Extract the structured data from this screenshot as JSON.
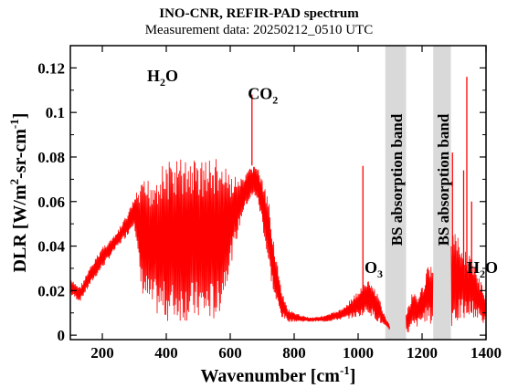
{
  "chart_data": {
    "type": "line",
    "title": "INO-CNR, REFIR-PAD spectrum",
    "subtitle": "Measurement data: 20250212_0510 UTC",
    "xlabel": {
      "main": "Wavenumber [cm",
      "sup": "-1",
      "close": "]"
    },
    "ylabel": {
      "main": "DLR [W/m",
      "sup1": "2",
      "mid": "-sr-cm",
      "sup2": "-1",
      "close": "]"
    },
    "xlim": [
      100,
      1400
    ],
    "ylim": [
      -0.002,
      0.13
    ],
    "xticks": [
      200,
      400,
      600,
      800,
      1000,
      1200,
      1400
    ],
    "xtick_labels": [
      "200",
      "400",
      "600",
      "800",
      "1000",
      "1200",
      "1400"
    ],
    "yticks": [
      0,
      0.02,
      0.04,
      0.06,
      0.08,
      0.1,
      0.12
    ],
    "ytick_labels": [
      "0",
      "0.02",
      "0.04",
      "0.06",
      "0.08",
      "0.1",
      "0.12"
    ],
    "series": [
      {
        "color": "#ff0000",
        "envelope": {
          "x": [
            100,
            130,
            160,
            200,
            240,
            280,
            300,
            320,
            350,
            380,
            400,
            440,
            480,
            520,
            560,
            600,
            640,
            660,
            680,
            700,
            720,
            740,
            760,
            780,
            800,
            850,
            900,
            950,
            1000,
            1030,
            1060,
            1080,
            1100
          ],
          "top": [
            0.025,
            0.022,
            0.03,
            0.04,
            0.045,
            0.055,
            0.062,
            0.068,
            0.072,
            0.076,
            0.078,
            0.08,
            0.08,
            0.08,
            0.08,
            0.072,
            0.07,
            0.075,
            0.078,
            0.07,
            0.06,
            0.04,
            0.02,
            0.012,
            0.01,
            0.008,
            0.009,
            0.012,
            0.02,
            0.025,
            0.02,
            0.01,
            0.004
          ],
          "bottom": [
            0.018,
            0.015,
            0.022,
            0.03,
            0.038,
            0.045,
            0.05,
            0.02,
            0.01,
            0.008,
            0.006,
            0.006,
            0.006,
            0.006,
            0.006,
            0.03,
            0.055,
            0.06,
            0.062,
            0.05,
            0.03,
            0.015,
            0.008,
            0.006,
            0.006,
            0.006,
            0.006,
            0.007,
            0.008,
            0.01,
            0.006,
            0.004,
            0.002
          ]
        },
        "peaks": [
          {
            "x": 668,
            "y": 0.108
          },
          {
            "x": 1015,
            "y": 0.076
          },
          {
            "x": 1295,
            "y": 0.082
          },
          {
            "x": 1340,
            "y": 0.116
          },
          {
            "x": 1330,
            "y": 0.074
          },
          {
            "x": 1355,
            "y": 0.06
          }
        ],
        "tail": {
          "x": [
            1150,
            1170,
            1190,
            1210,
            1230,
            1260,
            1300,
            1320,
            1360,
            1380,
            1400
          ],
          "top": [
            0.01,
            0.02,
            0.018,
            0.028,
            0.034,
            0.02,
            0.05,
            0.04,
            0.035,
            0.025,
            0.02
          ],
          "bottom": [
            0.0,
            0.002,
            0.004,
            0.006,
            0.004,
            0.002,
            0.004,
            0.006,
            0.008,
            0.006,
            0.004
          ]
        }
      }
    ],
    "bands": [
      {
        "x0": 1085,
        "x1": 1150,
        "label": "BS absorption band",
        "color": "#d9d9d9"
      },
      {
        "x0": 1235,
        "x1": 1290,
        "label": "BS absorption band",
        "color": "#d9d9d9"
      }
    ],
    "annotations": [
      {
        "x": 340,
        "y": 0.114,
        "main": "H",
        "sub": "2",
        "tail": "O"
      },
      {
        "x": 655,
        "y": 0.106,
        "main": "CO",
        "sub": "2",
        "tail": ""
      },
      {
        "x": 1020,
        "y": 0.028,
        "main": "O",
        "sub": "3",
        "tail": ""
      },
      {
        "x": 1340,
        "y": 0.028,
        "main": "H",
        "sub": "2",
        "tail": "O"
      }
    ],
    "grid": false,
    "legend": "none"
  }
}
